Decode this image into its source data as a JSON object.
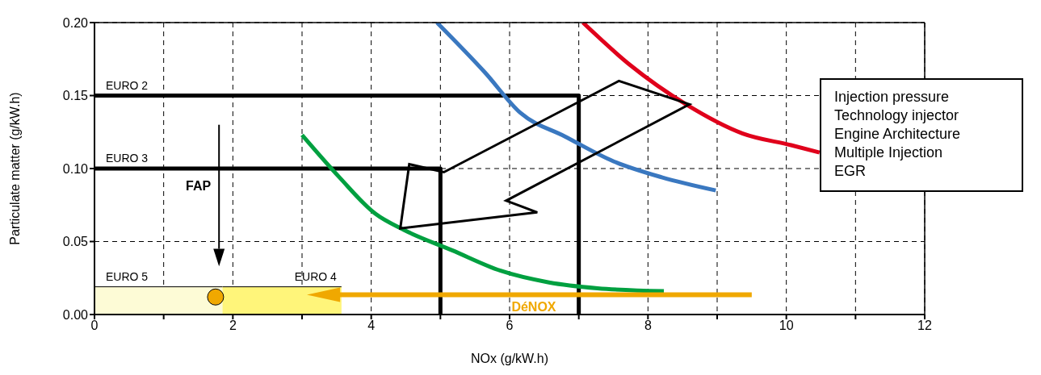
{
  "chart_data": {
    "type": "line",
    "xlabel": "NOx (g/kW.h)",
    "ylabel": "Particulate matter (g/kW.h)",
    "xlim": [
      0,
      12
    ],
    "xticks": [
      0,
      {
        "value": 1,
        "label": null
      },
      2,
      {
        "value": 3,
        "label": null
      },
      4,
      {
        "value": 5,
        "label": null
      },
      6,
      {
        "value": 7,
        "label": null
      },
      8,
      {
        "value": 9,
        "label": null
      },
      10,
      {
        "value": 11,
        "label": null
      },
      12
    ],
    "ylim": [
      0,
      0.2
    ],
    "yticks": [
      {
        "value": 0,
        "label": "0.00"
      },
      0.05,
      {
        "value": 0.1,
        "label": "0.10"
      },
      0.15,
      {
        "value": 0.2,
        "label": "0.20"
      }
    ],
    "grid": true,
    "series": [
      {
        "name": "EURO 5",
        "type": "area",
        "color": "#fdfbd6",
        "x": [
          0,
          1.85
        ],
        "values": [
          0.019,
          0.019
        ]
      },
      {
        "name": "EURO 4",
        "type": "area",
        "color": "#fff57a",
        "x": [
          1.85,
          3.57
        ],
        "values": [
          0.019,
          0.019
        ]
      },
      {
        "name": "EURO 2",
        "type": "line",
        "color": "#000000",
        "x": [
          0,
          7,
          7
        ],
        "values": [
          0.15,
          0.15,
          0
        ]
      },
      {
        "name": "EURO 3",
        "type": "line",
        "color": "#000000",
        "x": [
          0,
          5,
          5
        ],
        "values": [
          0.1,
          0.1,
          0
        ]
      },
      {
        "color": "#3a78c0",
        "x": [
          4.95,
          5.64,
          6.16,
          6.8,
          7.5,
          8.2,
          8.98
        ],
        "values": [
          0.2,
          0.166,
          0.138,
          0.122,
          0.105,
          0.094,
          0.085
        ]
      },
      {
        "color": "#e0001b",
        "x": [
          7.06,
          7.74,
          8.55,
          9.37,
          10.07,
          10.48
        ],
        "values": [
          0.2,
          0.171,
          0.144,
          0.124,
          0.116,
          0.111
        ]
      },
      {
        "color": "#00a040",
        "x": [
          3,
          3.54,
          4.06,
          4.47,
          5.17,
          5.87,
          6.57,
          7.27,
          8.23
        ],
        "values": [
          0.123,
          0.094,
          0.069,
          0.058,
          0.044,
          0.03,
          0.022,
          0.018,
          0.016
        ]
      },
      {
        "type": "scatter",
        "color": "#f0a800",
        "x": [
          1.75
        ],
        "values": [
          0.012
        ]
      }
    ],
    "annotations": [
      "FAP",
      "DéNOX",
      "Injection pressure",
      "Technology injector",
      "Engine Architecture",
      "Multiple Injection",
      "EGR"
    ]
  }
}
